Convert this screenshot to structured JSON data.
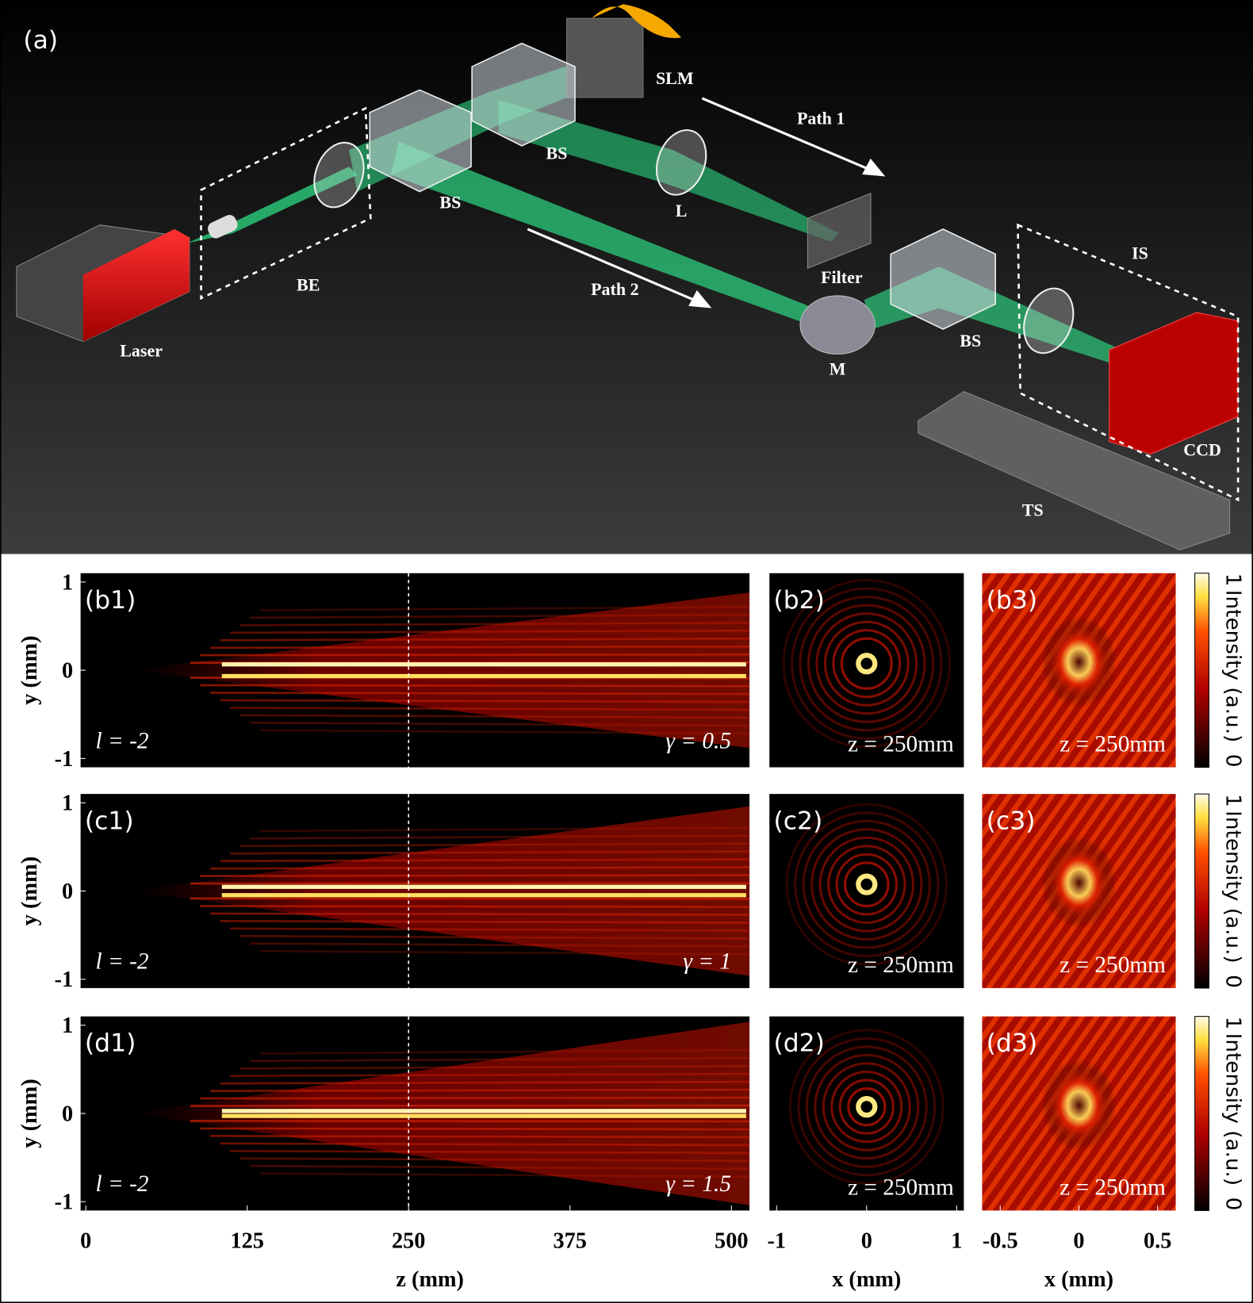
{
  "panel_a": {
    "label": "(a)",
    "components": {
      "laser": "Laser",
      "be": "BE",
      "bs1": "BS",
      "bs2": "BS",
      "slm": "SLM",
      "lens": "L",
      "filter": "Filter",
      "mirror": "M",
      "bs3": "BS",
      "is": "IS",
      "ccd": "CCD",
      "ts": "TS"
    },
    "path1": "Path 1",
    "path2": "Path 2"
  },
  "rows": [
    {
      "panels": [
        "(b1)",
        "(b2)",
        "(b3)"
      ],
      "l_label": "l = -2",
      "gamma_label": "γ = 0.5",
      "z_labels": [
        "z = 250mm",
        "z = 250mm"
      ]
    },
    {
      "panels": [
        "(c1)",
        "(c2)",
        "(c3)"
      ],
      "l_label": "l = -2",
      "gamma_label": "γ = 1",
      "z_labels": [
        "z = 250mm",
        "z = 250mm"
      ]
    },
    {
      "panels": [
        "(d1)",
        "(d2)",
        "(d3)"
      ],
      "l_label": "l = -2",
      "gamma_label": "γ = 1.5",
      "z_labels": [
        "z = 250mm",
        "z = 250mm"
      ]
    }
  ],
  "y_axis": {
    "label": "y (mm)",
    "ticks": [
      1,
      0,
      -1
    ],
    "lim": [
      -1.1,
      1.1
    ]
  },
  "x_axes": [
    {
      "label": "z (mm)",
      "ticks": [
        0,
        125,
        250,
        375,
        500
      ],
      "lim": [
        -4,
        514
      ]
    },
    {
      "label": "x (mm)",
      "ticks": [
        -1,
        0,
        1
      ],
      "lim": [
        -1.08,
        1.08
      ]
    },
    {
      "label": "x (mm)",
      "ticks": [
        -0.5,
        0,
        0.5
      ],
      "lim": [
        -0.615,
        0.615
      ]
    }
  ],
  "colorbar": {
    "max": 1,
    "min": 0,
    "label": "Intensity (a.u.)"
  }
}
